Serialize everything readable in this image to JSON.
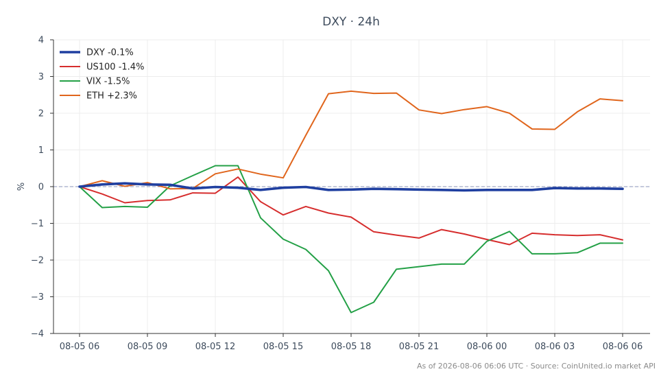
{
  "chart_data": {
    "type": "line",
    "title": "DXY · 24h",
    "xlabel": "",
    "ylabel": "%",
    "ylim": [
      -4,
      4
    ],
    "y_ticks": [
      "−4",
      "−3",
      "−2",
      "−1",
      "0",
      "1",
      "2",
      "3",
      "4"
    ],
    "x_tick_labels": [
      "08-05 06",
      "08-05 09",
      "08-05 12",
      "08-05 15",
      "08-05 18",
      "08-05 21",
      "08-06 00",
      "08-06 03",
      "08-06 06"
    ],
    "x": [
      "08-05 06",
      "08-05 07",
      "08-05 08",
      "08-05 09",
      "08-05 10",
      "08-05 11",
      "08-05 12",
      "08-05 13",
      "08-05 14",
      "08-05 15",
      "08-05 16",
      "08-05 17",
      "08-05 18",
      "08-05 19",
      "08-05 20",
      "08-05 21",
      "08-05 22",
      "08-05 23",
      "08-06 00",
      "08-06 01",
      "08-06 02",
      "08-06 03",
      "08-06 04",
      "08-06 05",
      "08-06 06"
    ],
    "zero_line": true,
    "grid": true,
    "legend_position": "top-left",
    "series": [
      {
        "name": "DXY -0.1%",
        "color": "#1f3fa0",
        "emphasis": true,
        "values": [
          0.0,
          0.06,
          0.09,
          0.06,
          0.05,
          -0.05,
          -0.01,
          -0.03,
          -0.09,
          -0.03,
          -0.01,
          -0.09,
          -0.08,
          -0.06,
          -0.07,
          -0.08,
          -0.09,
          -0.1,
          -0.09,
          -0.09,
          -0.09,
          -0.04,
          -0.05,
          -0.05,
          -0.06
        ]
      },
      {
        "name": "US100 -1.4%",
        "color": "#d62d2d",
        "values": [
          0.0,
          -0.2,
          -0.44,
          -0.38,
          -0.36,
          -0.17,
          -0.18,
          0.26,
          -0.41,
          -0.77,
          -0.54,
          -0.72,
          -0.83,
          -1.23,
          -1.32,
          -1.4,
          -1.17,
          -1.29,
          -1.44,
          -1.58,
          -1.27,
          -1.31,
          -1.33,
          -1.31,
          -1.45
        ]
      },
      {
        "name": "VIX -1.5%",
        "color": "#23a046",
        "values": [
          0.0,
          -0.57,
          -0.54,
          -0.56,
          0.02,
          0.3,
          0.57,
          0.57,
          -0.85,
          -1.43,
          -1.71,
          -2.29,
          -3.43,
          -3.15,
          -2.25,
          -2.18,
          -2.11,
          -2.11,
          -1.49,
          -1.22,
          -1.83,
          -1.83,
          -1.8,
          -1.54,
          -1.54
        ]
      },
      {
        "name": "ETH +2.3%",
        "color": "#e0651c",
        "values": [
          0.0,
          0.16,
          0.01,
          0.11,
          -0.06,
          -0.05,
          0.35,
          0.48,
          0.34,
          0.24,
          1.4,
          2.53,
          2.6,
          2.54,
          2.55,
          2.09,
          1.99,
          2.1,
          2.18,
          2.0,
          1.57,
          1.56,
          2.04,
          2.39,
          2.34
        ]
      }
    ]
  },
  "footer": "As of 2026-08-06 06:06 UTC · Source: CoinUnited.io market API"
}
